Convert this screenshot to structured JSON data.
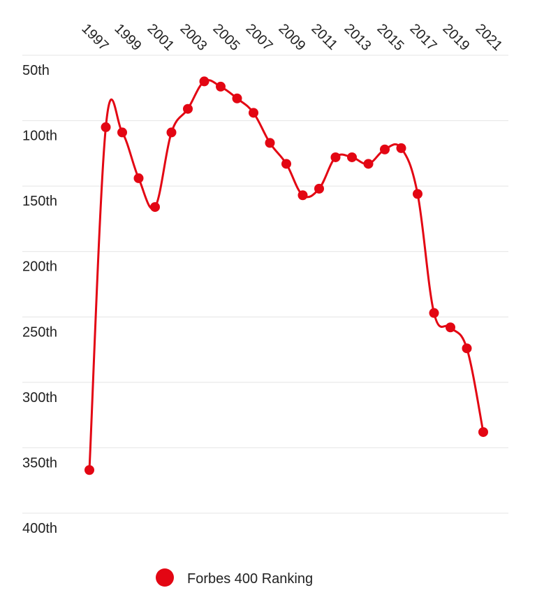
{
  "chart_data": {
    "type": "line",
    "x": [
      1997,
      1998,
      1999,
      2000,
      2001,
      2002,
      2003,
      2004,
      2005,
      2006,
      2007,
      2008,
      2009,
      2010,
      2011,
      2012,
      2013,
      2014,
      2015,
      2016,
      2017,
      2018,
      2019,
      2020,
      2021
    ],
    "xlim": [
      1997,
      2021
    ],
    "xticks": [
      1997,
      1999,
      2001,
      2003,
      2005,
      2007,
      2009,
      2011,
      2013,
      2015,
      2017,
      2019,
      2021
    ],
    "ylim": [
      50,
      400
    ],
    "y_inverted": true,
    "yticks": [
      {
        "value": 50,
        "label": "50th"
      },
      {
        "value": 100,
        "label": "100th"
      },
      {
        "value": 150,
        "label": "150th"
      },
      {
        "value": 200,
        "label": "200th"
      },
      {
        "value": 250,
        "label": "250th"
      },
      {
        "value": 300,
        "label": "300th"
      },
      {
        "value": 350,
        "label": "350th"
      },
      {
        "value": 400,
        "label": "400th"
      }
    ],
    "grid": true,
    "series": [
      {
        "name": "Forbes 400 Ranking",
        "color": "#e30613",
        "values": [
          367,
          105,
          109,
          144,
          166,
          109,
          91,
          70,
          74,
          83,
          94,
          117,
          133,
          157,
          152,
          128,
          128,
          133,
          122,
          121,
          156,
          247,
          258,
          274,
          338
        ]
      }
    ]
  }
}
